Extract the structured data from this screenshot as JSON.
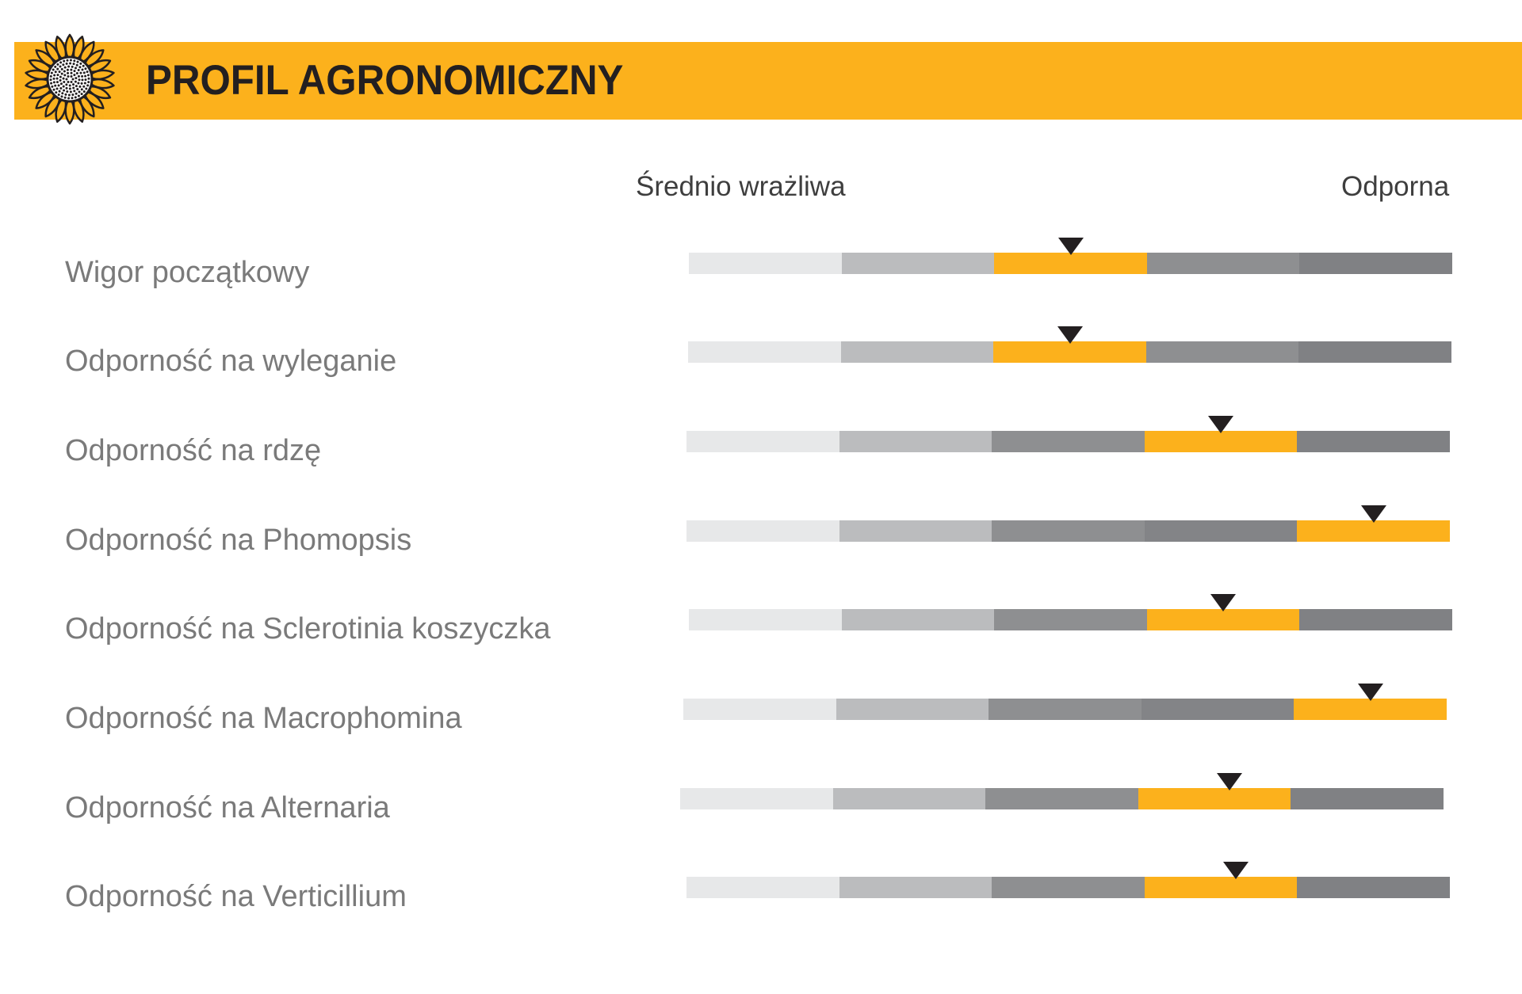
{
  "header": {
    "title": "PROFIL AGRONOMICZNY"
  },
  "scale": {
    "low_label": "Średnio wrażliwa",
    "high_label": "Odporna"
  },
  "colors": {
    "accent": "#fcb11c",
    "segments": [
      "#e7e8e9",
      "#bbbcbe",
      "#8e8f91",
      "#8e8f91",
      "#808184"
    ],
    "segments_alt": [
      "#e7e8e9",
      "#bbbcbe",
      "#8e8f91",
      "#838487",
      "#808184"
    ],
    "label": "#7a7a7a",
    "marker": "#231f20"
  },
  "chart_data": {
    "type": "rating-scale",
    "levels": 5,
    "scale_min_label": "Średnio wrażliwa",
    "scale_max_label": "Odporna",
    "traits": [
      {
        "name": "Wigor początkowy",
        "level": 3,
        "marker": 2.5
      },
      {
        "name": "Odporność na wyleganie",
        "level": 3,
        "marker": 2.5
      },
      {
        "name": "Odporność na rdzę",
        "level": 4,
        "marker": 3.5
      },
      {
        "name": "Odporność na Phomopsis",
        "level": 5,
        "marker": 4.5
      },
      {
        "name": "Odporność na Sclerotinia koszyczka",
        "level": 4,
        "marker": 3.5
      },
      {
        "name": "Odporność na Macrophomina",
        "level": 5,
        "marker": 4.5
      },
      {
        "name": "Odporność na Alternaria",
        "level": 4,
        "marker": 3.6
      },
      {
        "name": "Odporność na Verticillium",
        "level": 4,
        "marker": 3.6
      }
    ]
  }
}
